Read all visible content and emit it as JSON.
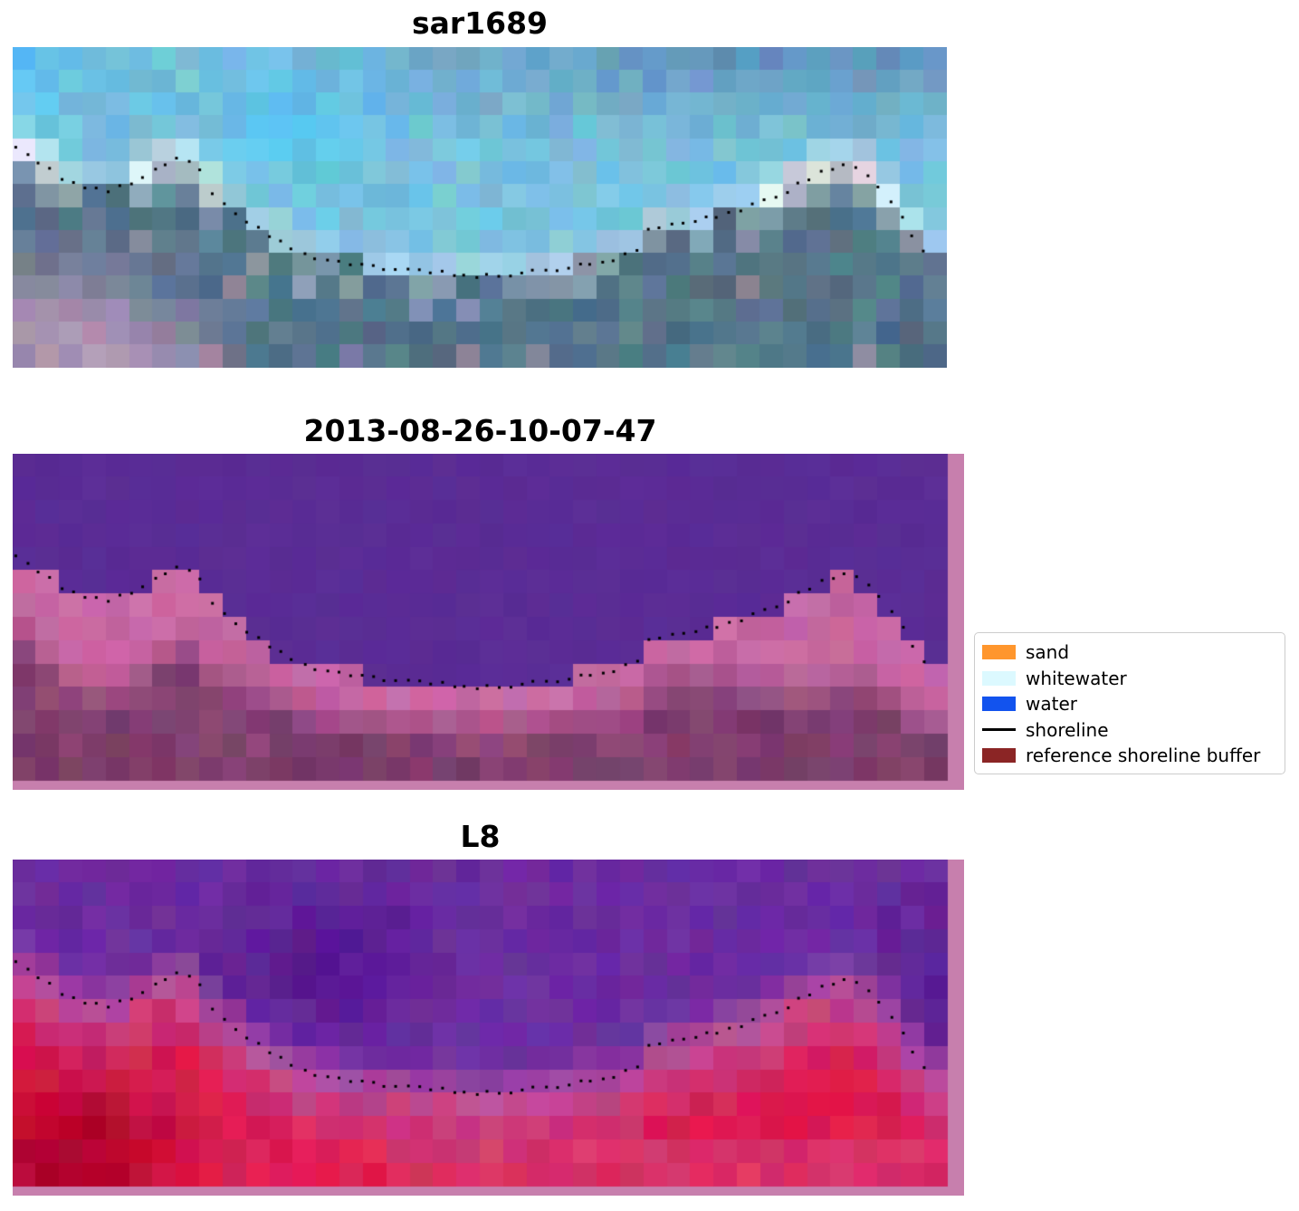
{
  "figure": {
    "background": "#ffffff"
  },
  "panels": [
    {
      "title": "sar1689"
    },
    {
      "title": "2013-08-26-10-07-47"
    },
    {
      "title": "L8"
    }
  ],
  "legend": {
    "items": [
      {
        "label": "sand",
        "swatch": "patch",
        "color": "#ff962d"
      },
      {
        "label": "whitewater",
        "swatch": "patch",
        "color": "#dcf9ff"
      },
      {
        "label": "water",
        "swatch": "patch",
        "color": "#1253ee"
      },
      {
        "label": "shoreline",
        "swatch": "line",
        "color": "#000000"
      },
      {
        "label": "reference shoreline buffer",
        "swatch": "patch",
        "color": "#8b2525"
      }
    ]
  },
  "chart_data": {
    "type": "heatmap",
    "description": "Three co-registered pixelated coastal image panels (SAR backscatter image 'sar1689', classified satellite scene dated 2013-08-26-10-07-47, and Landsat-8 'L8' false-colour composite). A detected shoreline is overlaid on each panel as small black dots; panels 2 and 3 show a pink reference-shoreline-buffer border strip along their right and bottom edges.",
    "legend_entries": [
      "sand",
      "whitewater",
      "water",
      "shoreline",
      "reference shoreline buffer"
    ],
    "shoreline_normalized": [
      [
        0.0,
        0.3
      ],
      [
        0.03,
        0.36
      ],
      [
        0.06,
        0.425
      ],
      [
        0.1,
        0.45
      ],
      [
        0.13,
        0.42
      ],
      [
        0.16,
        0.365
      ],
      [
        0.178,
        0.345
      ],
      [
        0.198,
        0.37
      ],
      [
        0.215,
        0.47
      ],
      [
        0.24,
        0.525
      ],
      [
        0.265,
        0.57
      ],
      [
        0.29,
        0.615
      ],
      [
        0.32,
        0.655
      ],
      [
        0.355,
        0.675
      ],
      [
        0.405,
        0.695
      ],
      [
        0.455,
        0.705
      ],
      [
        0.51,
        0.715
      ],
      [
        0.565,
        0.7
      ],
      [
        0.615,
        0.675
      ],
      [
        0.652,
        0.655
      ],
      [
        0.668,
        0.64
      ],
      [
        0.672,
        0.575
      ],
      [
        0.7,
        0.56
      ],
      [
        0.74,
        0.535
      ],
      [
        0.78,
        0.505
      ],
      [
        0.82,
        0.46
      ],
      [
        0.855,
        0.405
      ],
      [
        0.882,
        0.37
      ],
      [
        0.9,
        0.378
      ],
      [
        0.922,
        0.415
      ],
      [
        0.942,
        0.49
      ],
      [
        0.958,
        0.565
      ],
      [
        0.97,
        0.625
      ],
      [
        0.98,
        0.655
      ]
    ],
    "grid": {
      "cols": 40,
      "rows": 14
    },
    "palettes": {
      "sar": {
        "water": "#77c2dd",
        "water_deep": "#5d86b2",
        "water_bright": "#4ec2f2",
        "whitewater": "#eef3f6",
        "white_pink": "#f2dfe9",
        "land": "#5d8094",
        "land_dark": "#4b6a80",
        "land_pink": "#c49ab8"
      },
      "classified": {
        "water": "#5a2c95",
        "shore_pink": "#c4639f",
        "shore_pink_bright": "#cf74ae",
        "land_mauve": "#8d4677",
        "land_dark": "#743a64",
        "buffer_border": "#c77fad"
      },
      "l8": {
        "water": "#6b2da0",
        "water_dark": "#50158c",
        "shore_magenta": "#b84f9b",
        "land_red": "#dd1b50",
        "land_red_bright": "#e8335f",
        "land_deep_red": "#b2042f",
        "land_pink": "#d05687",
        "buffer_border": "#c77fad"
      }
    }
  }
}
